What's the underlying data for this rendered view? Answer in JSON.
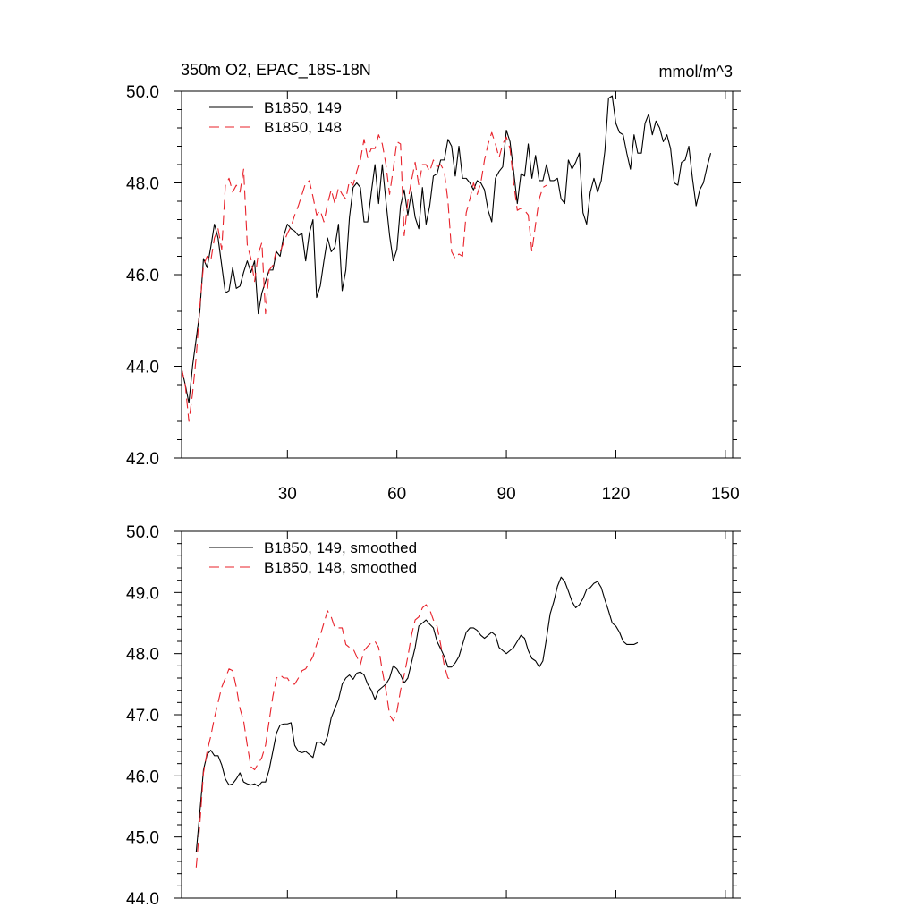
{
  "chart_data": [
    {
      "type": "line",
      "title_left": "350m O2, EPAC_18S-18N",
      "title_right": "mmol/m^3",
      "xlim": [
        1,
        152
      ],
      "ylim": [
        42.0,
        50.0
      ],
      "xticks": [
        30,
        60,
        90,
        120,
        150
      ],
      "xtick_labels": [
        "30",
        "60",
        "90",
        "120",
        "150"
      ],
      "yticks": [
        42.0,
        44.0,
        46.0,
        48.0,
        50.0
      ],
      "ytick_labels": [
        "42.0",
        "44.0",
        "46.0",
        "48.0",
        "50.0"
      ],
      "legend_position": "top-left",
      "series": [
        {
          "name": "B1850, 149",
          "color": "#000000",
          "dash": "solid",
          "x_start": 1,
          "values": [
            43.95,
            43.6,
            43.2,
            44.0,
            44.6,
            45.2,
            46.35,
            46.15,
            46.6,
            47.1,
            46.8,
            46.2,
            45.6,
            45.65,
            46.15,
            45.7,
            45.75,
            46.05,
            46.3,
            46.05,
            46.3,
            45.15,
            45.6,
            45.85,
            46.1,
            46.1,
            46.5,
            46.4,
            46.85,
            47.1,
            47.0,
            46.95,
            46.85,
            46.9,
            46.3,
            46.9,
            47.2,
            45.5,
            45.75,
            46.3,
            46.8,
            46.5,
            46.6,
            47.1,
            45.65,
            46.1,
            47.25,
            47.9,
            48.0,
            47.9,
            47.15,
            47.15,
            47.8,
            48.4,
            47.55,
            48.4,
            47.6,
            46.85,
            46.3,
            46.55,
            47.5,
            47.85,
            47.3,
            47.8,
            47.25,
            47.0,
            47.9,
            47.1,
            47.5,
            48.15,
            48.2,
            48.5,
            48.5,
            48.95,
            48.8,
            48.15,
            48.8,
            48.1,
            48.1,
            48.0,
            47.85,
            48.05,
            48.0,
            47.85,
            47.4,
            47.15,
            48.1,
            48.25,
            48.35,
            49.15,
            48.9,
            48.25,
            47.55,
            48.2,
            48.15,
            48.85,
            48.1,
            48.6,
            48.05,
            48.05,
            48.4,
            48.05,
            48.05,
            48.1,
            47.65,
            47.55,
            48.5,
            48.3,
            48.45,
            48.65,
            47.35,
            47.1,
            47.8,
            48.1,
            47.8,
            48.05,
            48.7,
            49.85,
            49.9,
            49.3,
            49.1,
            49.05,
            48.65,
            48.3,
            49.05,
            48.65,
            48.65,
            49.3,
            49.5,
            49.05,
            49.35,
            49.2,
            48.9,
            49.05,
            48.75,
            48.0,
            47.95,
            48.45,
            48.5,
            48.8,
            48.1,
            47.5,
            47.85,
            48.0,
            48.35,
            48.65
          ]
        },
        {
          "name": "B1850, 148",
          "color": "#e8212a",
          "dash": "long-dash",
          "x_start": 1,
          "values": [
            43.95,
            43.6,
            42.8,
            43.4,
            44.2,
            45.3,
            46.2,
            46.4,
            46.3,
            46.8,
            47.0,
            46.55,
            47.95,
            48.1,
            47.8,
            47.95,
            47.8,
            48.3,
            46.65,
            46.35,
            45.85,
            46.45,
            46.7,
            45.15,
            46.1,
            46.2,
            46.55,
            46.5,
            46.7,
            46.9,
            47.05,
            47.3,
            47.5,
            47.75,
            48.0,
            48.05,
            47.7,
            47.3,
            47.4,
            47.15,
            47.55,
            47.85,
            47.55,
            47.9,
            47.75,
            47.65,
            48.05,
            47.95,
            48.25,
            48.5,
            48.95,
            48.55,
            48.75,
            48.75,
            49.05,
            48.85,
            48.4,
            47.75,
            48.3,
            48.9,
            48.85,
            46.85,
            47.6,
            48.05,
            48.45,
            47.95,
            48.4,
            48.4,
            48.25,
            48.5,
            48.35,
            48.4,
            48.25,
            47.6,
            46.5,
            46.35,
            46.45,
            46.4,
            47.35,
            47.65,
            48.0,
            47.75,
            48.0,
            48.5,
            48.85,
            49.1,
            48.85,
            48.55,
            48.85,
            49.0,
            48.75,
            48.0,
            47.4,
            47.45,
            47.4,
            47.3,
            46.5,
            47.1,
            47.65,
            47.9,
            47.95
          ]
        }
      ]
    },
    {
      "type": "line",
      "xlim": [
        1,
        152
      ],
      "ylim": [
        44.0,
        50.0
      ],
      "xticks": [
        30,
        60,
        90,
        120,
        150
      ],
      "yticks": [
        44.0,
        45.0,
        46.0,
        47.0,
        48.0,
        49.0,
        50.0
      ],
      "ytick_labels": [
        "44.0",
        "45.0",
        "46.0",
        "47.0",
        "48.0",
        "49.0",
        "50.0"
      ],
      "legend_position": "top-left",
      "series": [
        {
          "name": "B1850, 149, smoothed",
          "color": "#000000",
          "dash": "solid",
          "x_start": 5,
          "values": [
            44.75,
            45.4,
            46.1,
            46.35,
            46.42,
            46.33,
            46.33,
            46.18,
            45.95,
            45.85,
            45.87,
            45.95,
            46.05,
            45.9,
            45.87,
            45.85,
            45.87,
            45.83,
            45.9,
            45.9,
            46.1,
            46.4,
            46.7,
            46.83,
            46.85,
            46.85,
            46.87,
            46.5,
            46.4,
            46.38,
            46.4,
            46.35,
            46.3,
            46.55,
            46.55,
            46.5,
            46.65,
            46.95,
            47.1,
            47.25,
            47.5,
            47.6,
            47.65,
            47.58,
            47.68,
            47.7,
            47.65,
            47.5,
            47.4,
            47.25,
            47.4,
            47.45,
            47.5,
            47.6,
            47.8,
            47.75,
            47.65,
            47.52,
            47.6,
            47.85,
            48.1,
            48.45,
            48.5,
            48.55,
            48.48,
            48.42,
            48.2,
            48.08,
            47.95,
            47.78,
            47.78,
            47.85,
            47.95,
            48.15,
            48.35,
            48.42,
            48.42,
            48.38,
            48.3,
            48.25,
            48.3,
            48.35,
            48.3,
            48.1,
            48.05,
            48.0,
            48.05,
            48.1,
            48.2,
            48.3,
            48.25,
            48.05,
            47.92,
            47.88,
            47.78,
            47.88,
            48.25,
            48.65,
            48.85,
            49.1,
            49.25,
            49.18,
            49.02,
            48.85,
            48.75,
            48.8,
            48.9,
            49.05,
            49.08,
            49.15,
            49.18,
            49.08,
            48.88,
            48.7,
            48.5,
            48.45,
            48.35,
            48.2,
            48.15,
            48.15,
            48.15,
            48.18
          ]
        },
        {
          "name": "B1850, 148, smoothed",
          "color": "#e8212a",
          "dash": "long-dash",
          "x_start": 5,
          "values": [
            44.5,
            45.2,
            46.05,
            46.4,
            46.65,
            46.95,
            47.2,
            47.45,
            47.6,
            47.75,
            47.72,
            47.45,
            47.1,
            46.9,
            46.5,
            46.15,
            46.1,
            46.2,
            46.3,
            46.5,
            46.9,
            47.3,
            47.6,
            47.65,
            47.6,
            47.6,
            47.5,
            47.5,
            47.6,
            47.72,
            47.75,
            47.85,
            47.95,
            48.15,
            48.3,
            48.5,
            48.7,
            48.6,
            48.42,
            48.42,
            48.42,
            48.15,
            48.1,
            48.08,
            47.95,
            47.82,
            48.05,
            48.12,
            48.18,
            48.2,
            48.1,
            47.72,
            47.4,
            47.0,
            46.9,
            47.05,
            47.4,
            47.65,
            47.95,
            48.3,
            48.55,
            48.6,
            48.75,
            48.8,
            48.72,
            48.55,
            48.45,
            48.15,
            47.8,
            47.6,
            47.58
          ]
        }
      ]
    }
  ]
}
